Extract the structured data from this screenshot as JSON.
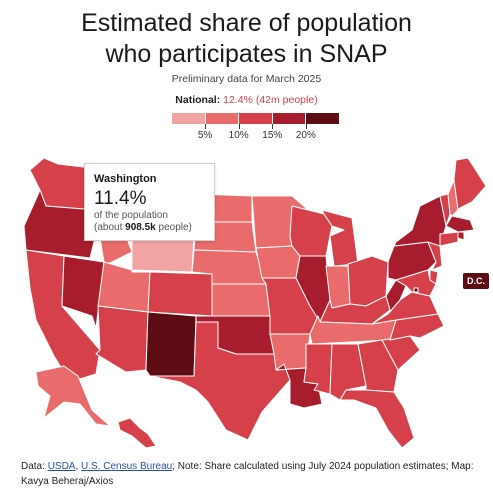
{
  "title_line1": "Estimated share of population",
  "title_line2": "who participates in SNAP",
  "subtitle": "Preliminary data for March 2025",
  "national": {
    "label": "National:",
    "value": "12.4%",
    "detail": "(42m people)"
  },
  "legend": {
    "colors": [
      "#f2a3a3",
      "#ea6b6b",
      "#d6404a",
      "#a81d2d",
      "#5c0c12"
    ],
    "ticks": [
      "5%",
      "10%",
      "15%",
      "20%"
    ]
  },
  "tooltip": {
    "state": "Washington",
    "value": "11.4%",
    "line1": "of the population",
    "line2_prefix": "(about ",
    "line2_bold": "908.5k",
    "line2_suffix": " people)"
  },
  "dc_label": "D.C.",
  "footer": {
    "data_label": "Data:",
    "link1": "USDA",
    "sep": ",",
    "link2": "U.S. Census Bureau",
    "note": "; Note: Share calculated using July 2024 population estimates; Map: Kavya Beheraj/Axios"
  },
  "map_data": {
    "color_bins": [
      [
        0,
        5,
        "#f2a3a3"
      ],
      [
        5,
        10,
        "#ea6b6b"
      ],
      [
        10,
        15,
        "#d6404a"
      ],
      [
        15,
        20,
        "#a81d2d"
      ],
      [
        20,
        100,
        "#5c0c12"
      ]
    ],
    "states": [
      {
        "abbr": "WA",
        "pct": 11.4
      },
      {
        "abbr": "OR",
        "pct": 17.0
      },
      {
        "abbr": "CA",
        "pct": 14.0
      },
      {
        "abbr": "NV",
        "pct": 15.5
      },
      {
        "abbr": "ID",
        "pct": 7.5
      },
      {
        "abbr": "MT",
        "pct": 8.5
      },
      {
        "abbr": "WY",
        "pct": 4.5
      },
      {
        "abbr": "UT",
        "pct": 5.5
      },
      {
        "abbr": "AZ",
        "pct": 12.5
      },
      {
        "abbr": "CO",
        "pct": 10.5
      },
      {
        "abbr": "NM",
        "pct": 21.5
      },
      {
        "abbr": "ND",
        "pct": 7.0
      },
      {
        "abbr": "SD",
        "pct": 8.5
      },
      {
        "abbr": "NE",
        "pct": 8.5
      },
      {
        "abbr": "KS",
        "pct": 6.5
      },
      {
        "abbr": "OK",
        "pct": 16.5
      },
      {
        "abbr": "TX",
        "pct": 11.5
      },
      {
        "abbr": "MN",
        "pct": 7.5
      },
      {
        "abbr": "IA",
        "pct": 9.5
      },
      {
        "abbr": "MO",
        "pct": 10.5
      },
      {
        "abbr": "AR",
        "pct": 8.5
      },
      {
        "abbr": "LA",
        "pct": 17.5
      },
      {
        "abbr": "WI",
        "pct": 11.5
      },
      {
        "abbr": "IL",
        "pct": 15.0
      },
      {
        "abbr": "MI",
        "pct": 13.5
      },
      {
        "abbr": "IN",
        "pct": 8.5
      },
      {
        "abbr": "OH",
        "pct": 11.5
      },
      {
        "abbr": "KY",
        "pct": 12.5
      },
      {
        "abbr": "TN",
        "pct": 9.5
      },
      {
        "abbr": "MS",
        "pct": 12.5
      },
      {
        "abbr": "AL",
        "pct": 13.5
      },
      {
        "abbr": "GA",
        "pct": 12.5
      },
      {
        "abbr": "FL",
        "pct": 12.5
      },
      {
        "abbr": "SC",
        "pct": 11.0
      },
      {
        "abbr": "NC",
        "pct": 12.5
      },
      {
        "abbr": "VA",
        "pct": 10.0
      },
      {
        "abbr": "WV",
        "pct": 15.5
      },
      {
        "abbr": "PA",
        "pct": 15.5
      },
      {
        "abbr": "NY",
        "pct": 15.0
      },
      {
        "abbr": "VT",
        "pct": 10.5
      },
      {
        "abbr": "NH",
        "pct": 6.0
      },
      {
        "abbr": "ME",
        "pct": 12.5
      },
      {
        "abbr": "MA",
        "pct": 15.5
      },
      {
        "abbr": "RI",
        "pct": 17.0
      },
      {
        "abbr": "CT",
        "pct": 13.0
      },
      {
        "abbr": "NJ",
        "pct": 10.5
      },
      {
        "abbr": "DE",
        "pct": 11.5
      },
      {
        "abbr": "MD",
        "pct": 11.5
      },
      {
        "abbr": "DC",
        "pct": 21.0
      },
      {
        "abbr": "AK",
        "pct": 9.5
      },
      {
        "abbr": "HI",
        "pct": 12.5
      }
    ]
  }
}
